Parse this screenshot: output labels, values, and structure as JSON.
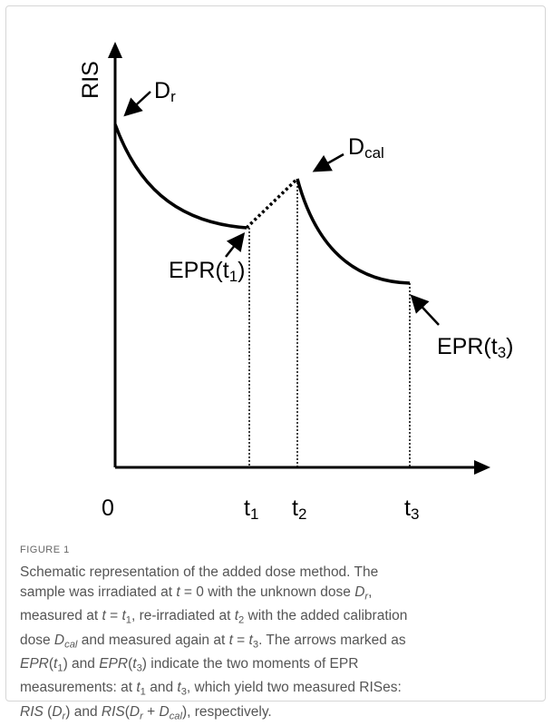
{
  "figure": {
    "labels": {
      "y_axis": {
        "text": "RIS"
      },
      "origin": {
        "text": "0"
      },
      "t1": {
        "text": "t",
        "sub": "1"
      },
      "t2": {
        "text": "t",
        "sub": "2"
      },
      "t3": {
        "text": "t",
        "sub": "3"
      },
      "dr": {
        "text": "D",
        "sub": "r"
      },
      "dcal": {
        "text": "D",
        "sub": "cal"
      },
      "epr1": {
        "text": "EPR(t",
        "sub": "1",
        "tail": ")"
      },
      "epr3": {
        "text": "EPR(t",
        "sub": "3",
        "tail": ")"
      }
    },
    "caption_label": "FIGURE 1",
    "caption_lines": [
      [
        "Schematic representation of the added dose method. The"
      ],
      [
        "sample was irradiated at ",
        {
          "i": "t"
        },
        " = 0 with the unknown dose ",
        {
          "i": "D"
        },
        {
          "isub": "r"
        },
        ","
      ],
      [
        "measured at ",
        {
          "i": "t"
        },
        " = ",
        {
          "i": "t"
        },
        {
          "sub": "1"
        },
        ", re-irradiated at ",
        {
          "i": "t"
        },
        {
          "sub": "2"
        },
        " with the added calibration"
      ],
      [
        "dose ",
        {
          "i": "D"
        },
        {
          "isub": "cal"
        },
        " and measured again at ",
        {
          "i": "t"
        },
        " = ",
        {
          "i": "t"
        },
        {
          "sub": "3"
        },
        ". The arrows marked as"
      ],
      [
        {
          "i": "EPR"
        },
        "(",
        {
          "i": "t"
        },
        {
          "sub": "1"
        },
        ") and ",
        {
          "i": "EPR"
        },
        "(",
        {
          "i": "t"
        },
        {
          "sub": "3"
        },
        ") indicate the two moments of EPR"
      ],
      [
        "measurements: at ",
        {
          "i": "t"
        },
        {
          "sub": "1"
        },
        " and ",
        {
          "i": "t"
        },
        {
          "sub": "3"
        },
        ", which yield two measured RISes:"
      ],
      [
        {
          "i": "RIS"
        },
        " (",
        {
          "i": "D"
        },
        {
          "isub": "r"
        },
        ") and ",
        {
          "i": "RIS"
        },
        "(",
        {
          "i": "D"
        },
        {
          "isub": "r"
        },
        " + ",
        {
          "i": "D"
        },
        {
          "isub": "cal"
        },
        "), respectively."
      ]
    ]
  }
}
